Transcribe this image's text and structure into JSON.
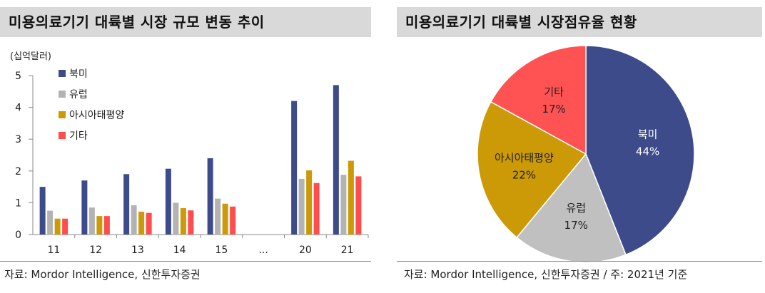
{
  "chart_data": [
    {
      "type": "bar",
      "title": "미용의료기기 대륙별 시장 규모 변동 추이",
      "unit": "(십억달러)",
      "categories": [
        "11",
        "12",
        "13",
        "14",
        "15",
        "...",
        "20",
        "21"
      ],
      "ylim": [
        0,
        5
      ],
      "yticks": [
        "0",
        "1",
        "2",
        "3",
        "4",
        "5"
      ],
      "legend_position": "top-left",
      "series": [
        {
          "name": "북미",
          "color": "#3e4b8a",
          "values": [
            1.5,
            1.7,
            1.9,
            2.07,
            2.4,
            null,
            4.2,
            4.7
          ]
        },
        {
          "name": "유럽",
          "color": "#b3b3b3",
          "values": [
            0.75,
            0.85,
            0.92,
            1.0,
            1.13,
            null,
            1.75,
            1.88
          ]
        },
        {
          "name": "아시아태평양",
          "color": "#cc9a06",
          "values": [
            0.5,
            0.58,
            0.72,
            0.83,
            0.97,
            null,
            2.02,
            2.32
          ]
        },
        {
          "name": "기타",
          "color": "#ff4d4d",
          "values": [
            0.5,
            0.58,
            0.68,
            0.76,
            0.88,
            null,
            1.62,
            1.83
          ]
        }
      ],
      "source": "자료: Mordor Intelligence, 신한투자증권"
    },
    {
      "type": "pie",
      "title": "미용의료기기 대륙별 시장점유율 현황",
      "slices": [
        {
          "label": "북미",
          "value": 44,
          "value_label": "44%",
          "color": "#3e4b8a"
        },
        {
          "label": "유럽",
          "value": 17,
          "value_label": "17%",
          "color": "#c0c0c0"
        },
        {
          "label": "아시아태평양",
          "value": 22,
          "value_label": "22%",
          "color": "#cc9a06"
        },
        {
          "label": "기타",
          "value": 17,
          "value_label": "17%",
          "color": "#ff5252"
        }
      ],
      "source": "자료: Mordor Intelligence, 신한투자증권 / 주: 2021년 기준"
    }
  ]
}
